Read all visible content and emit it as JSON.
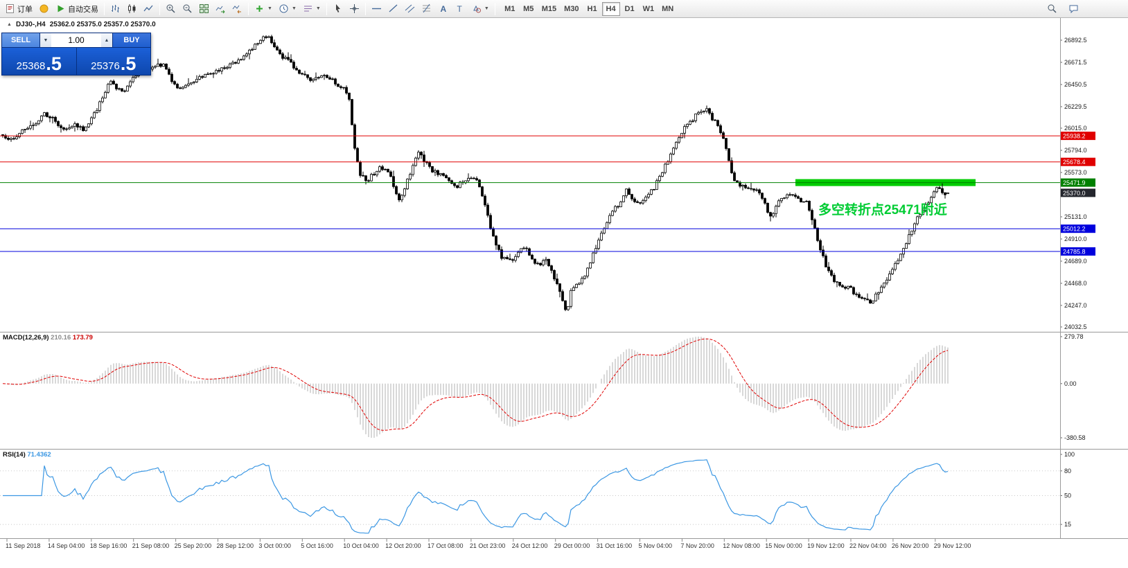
{
  "toolbar": {
    "order_label": "订单",
    "autotrade_label": "自动交易",
    "timeframes": [
      "M1",
      "M5",
      "M15",
      "M30",
      "H1",
      "H4",
      "D1",
      "W1",
      "MN"
    ],
    "active_timeframe": "H4"
  },
  "trade_panel": {
    "sell_label": "SELL",
    "buy_label": "BUY",
    "volume": "1.00",
    "sell_price_main": "25368",
    "sell_price_big": ".5",
    "buy_price_main": "25376",
    "buy_price_big": ".5"
  },
  "chart_header": {
    "symbol_period": "DJ30-,H4",
    "ohlc": "25362.0 25375.0 25357.0 25370.0"
  },
  "chart_data": {
    "type": "candlestick",
    "symbol": "DJ30-",
    "timeframe": "H4",
    "bars": 342,
    "last_bar": {
      "open": 25362.0,
      "high": 25375.0,
      "low": 25357.0,
      "close": 25370.0
    },
    "current_price": 25370.0,
    "price_axis": {
      "min": 24032.5,
      "max": 26892.5,
      "ticks": [
        26892.5,
        26671.5,
        26450.5,
        26229.5,
        26015.0,
        25794.0,
        25573.0,
        25352.0,
        25131.0,
        24910.0,
        24689.0,
        24468.0,
        24247.0,
        24032.5
      ]
    },
    "levels": [
      {
        "price": 25938.2,
        "color": "#e00000",
        "role": "resistance"
      },
      {
        "price": 25678.4,
        "color": "#e00000",
        "role": "resistance"
      },
      {
        "price": 25471.9,
        "color": "#008000",
        "role": "pivot"
      },
      {
        "price": 25012.2,
        "color": "#0000dd",
        "role": "support"
      },
      {
        "price": 24785.8,
        "color": "#0000dd",
        "role": "support"
      }
    ],
    "highlight_rect": {
      "price": 25471.9,
      "x_start": 0.75,
      "x_end": 0.92,
      "color": "#00cc00"
    },
    "annotation": {
      "text": "多空转折点25471附近",
      "color": "#00cc33",
      "x": 0.772,
      "price": 25160
    },
    "price_path": [
      [
        0.0,
        25950
      ],
      [
        0.01,
        25900
      ],
      [
        0.022,
        26010
      ],
      [
        0.033,
        26060
      ],
      [
        0.045,
        26160
      ],
      [
        0.055,
        26090
      ],
      [
        0.065,
        26000
      ],
      [
        0.075,
        26060
      ],
      [
        0.085,
        26010
      ],
      [
        0.095,
        26120
      ],
      [
        0.105,
        26310
      ],
      [
        0.113,
        26480
      ],
      [
        0.12,
        26420
      ],
      [
        0.127,
        26360
      ],
      [
        0.135,
        26500
      ],
      [
        0.145,
        26570
      ],
      [
        0.155,
        26600
      ],
      [
        0.163,
        26660
      ],
      [
        0.17,
        26640
      ],
      [
        0.18,
        26470
      ],
      [
        0.188,
        26390
      ],
      [
        0.196,
        26440
      ],
      [
        0.205,
        26500
      ],
      [
        0.215,
        26540
      ],
      [
        0.228,
        26580
      ],
      [
        0.24,
        26640
      ],
      [
        0.252,
        26720
      ],
      [
        0.263,
        26800
      ],
      [
        0.272,
        26880
      ],
      [
        0.28,
        26940
      ],
      [
        0.287,
        26840
      ],
      [
        0.295,
        26730
      ],
      [
        0.305,
        26660
      ],
      [
        0.315,
        26560
      ],
      [
        0.325,
        26500
      ],
      [
        0.335,
        26540
      ],
      [
        0.345,
        26520
      ],
      [
        0.355,
        26440
      ],
      [
        0.363,
        26390
      ],
      [
        0.367,
        26300
      ],
      [
        0.372,
        25820
      ],
      [
        0.378,
        25560
      ],
      [
        0.385,
        25480
      ],
      [
        0.392,
        25560
      ],
      [
        0.4,
        25620
      ],
      [
        0.408,
        25580
      ],
      [
        0.414,
        25430
      ],
      [
        0.42,
        25300
      ],
      [
        0.427,
        25470
      ],
      [
        0.434,
        25640
      ],
      [
        0.44,
        25780
      ],
      [
        0.448,
        25660
      ],
      [
        0.456,
        25580
      ],
      [
        0.464,
        25560
      ],
      [
        0.472,
        25480
      ],
      [
        0.48,
        25420
      ],
      [
        0.488,
        25500
      ],
      [
        0.497,
        25530
      ],
      [
        0.505,
        25440
      ],
      [
        0.512,
        25170
      ],
      [
        0.52,
        24900
      ],
      [
        0.528,
        24720
      ],
      [
        0.537,
        24690
      ],
      [
        0.545,
        24760
      ],
      [
        0.552,
        24830
      ],
      [
        0.56,
        24700
      ],
      [
        0.568,
        24640
      ],
      [
        0.575,
        24710
      ],
      [
        0.582,
        24550
      ],
      [
        0.59,
        24380
      ],
      [
        0.597,
        24150
      ],
      [
        0.601,
        24400
      ],
      [
        0.608,
        24480
      ],
      [
        0.615,
        24510
      ],
      [
        0.622,
        24700
      ],
      [
        0.63,
        24880
      ],
      [
        0.638,
        25060
      ],
      [
        0.645,
        25180
      ],
      [
        0.652,
        25260
      ],
      [
        0.66,
        25400
      ],
      [
        0.666,
        25300
      ],
      [
        0.673,
        25250
      ],
      [
        0.68,
        25320
      ],
      [
        0.688,
        25400
      ],
      [
        0.695,
        25540
      ],
      [
        0.703,
        25680
      ],
      [
        0.712,
        25880
      ],
      [
        0.72,
        26000
      ],
      [
        0.728,
        26080
      ],
      [
        0.736,
        26180
      ],
      [
        0.744,
        26210
      ],
      [
        0.75,
        26120
      ],
      [
        0.757,
        26030
      ],
      [
        0.762,
        25940
      ],
      [
        0.768,
        25680
      ],
      [
        0.775,
        25480
      ],
      [
        0.782,
        25440
      ],
      [
        0.79,
        25400
      ],
      [
        0.798,
        25420
      ],
      [
        0.806,
        25260
      ],
      [
        0.813,
        25120
      ],
      [
        0.82,
        25280
      ],
      [
        0.828,
        25340
      ],
      [
        0.836,
        25360
      ],
      [
        0.843,
        25300
      ],
      [
        0.85,
        25290
      ],
      [
        0.857,
        25100
      ],
      [
        0.864,
        24840
      ],
      [
        0.872,
        24620
      ],
      [
        0.88,
        24500
      ],
      [
        0.888,
        24440
      ],
      [
        0.896,
        24420
      ],
      [
        0.904,
        24340
      ],
      [
        0.912,
        24300
      ],
      [
        0.92,
        24280
      ],
      [
        0.926,
        24380
      ],
      [
        0.932,
        24460
      ],
      [
        0.939,
        24580
      ],
      [
        0.946,
        24680
      ],
      [
        0.953,
        24820
      ],
      [
        0.96,
        24960
      ],
      [
        0.968,
        25120
      ],
      [
        0.976,
        25230
      ],
      [
        0.983,
        25340
      ],
      [
        0.99,
        25450
      ],
      [
        0.996,
        25360
      ],
      [
        1.0,
        25370
      ]
    ],
    "time_axis": [
      "11 Sep 2018",
      "14 Sep 04:00",
      "18 Sep 16:00",
      "21 Sep 08:00",
      "25 Sep 20:00",
      "28 Sep 12:00",
      "3 Oct 00:00",
      "5 Oct 16:00",
      "10 Oct 04:00",
      "12 Oct 20:00",
      "17 Oct 08:00",
      "21 Oct 23:00",
      "24 Oct 12:00",
      "29 Oct 00:00",
      "31 Oct 16:00",
      "5 Nov 04:00",
      "7 Nov 20:00",
      "12 Nov 08:00",
      "15 Nov 00:00",
      "19 Nov 12:00",
      "22 Nov 04:00",
      "26 Nov 20:00",
      "29 Nov 12:00"
    ],
    "indicators": {
      "macd": {
        "label": "MACD(12,26,9)",
        "value_main": "210.16",
        "value_signal": "173.79",
        "axis_ticks": [
          "279.78",
          "0.00",
          "-380.58"
        ],
        "params": [
          12,
          26,
          9
        ]
      },
      "rsi": {
        "label": "RSI(14)",
        "value": "71.4362",
        "period": 14,
        "axis_ticks": [
          100,
          80,
          50,
          15
        ],
        "levels": [
          80,
          50,
          15
        ]
      }
    }
  }
}
